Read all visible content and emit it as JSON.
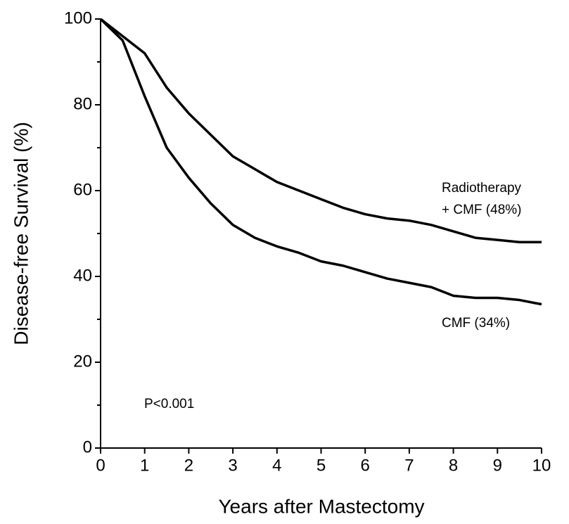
{
  "chart_data": {
    "type": "line",
    "xlabel": "Years after Mastectomy",
    "ylabel": "Disease-free Survival (%)",
    "xlim": [
      0,
      10
    ],
    "ylim": [
      0,
      100
    ],
    "xticks": [
      0,
      1,
      2,
      3,
      4,
      5,
      6,
      7,
      8,
      9,
      10
    ],
    "yticks": [
      0,
      20,
      40,
      60,
      80,
      100
    ],
    "yticks_minor": [
      10,
      30,
      50,
      70,
      90
    ],
    "x": [
      0,
      0.5,
      1,
      1.5,
      2,
      2.5,
      3,
      3.5,
      4,
      4.5,
      5,
      5.5,
      6,
      6.5,
      7,
      7.5,
      8,
      8.5,
      9,
      9.5,
      10
    ],
    "series": [
      {
        "color": "#000000",
        "values": [
          100,
          96,
          92,
          84,
          78,
          73,
          68,
          65,
          62,
          60,
          58,
          56,
          54.5,
          53.5,
          53,
          52,
          50.5,
          49,
          48.5,
          48,
          48
        ]
      },
      {
        "color": "#000000",
        "values": [
          100,
          95,
          82,
          70,
          63,
          57,
          52,
          49,
          47,
          45.5,
          43.5,
          42.5,
          41,
          39.5,
          38.5,
          37.5,
          35.5,
          35,
          35,
          34.5,
          33.5
        ]
      }
    ],
    "annotations": [
      "Radiotherapy",
      "+ CMF (48%)",
      "CMF (34%)",
      "P<0.001"
    ]
  }
}
